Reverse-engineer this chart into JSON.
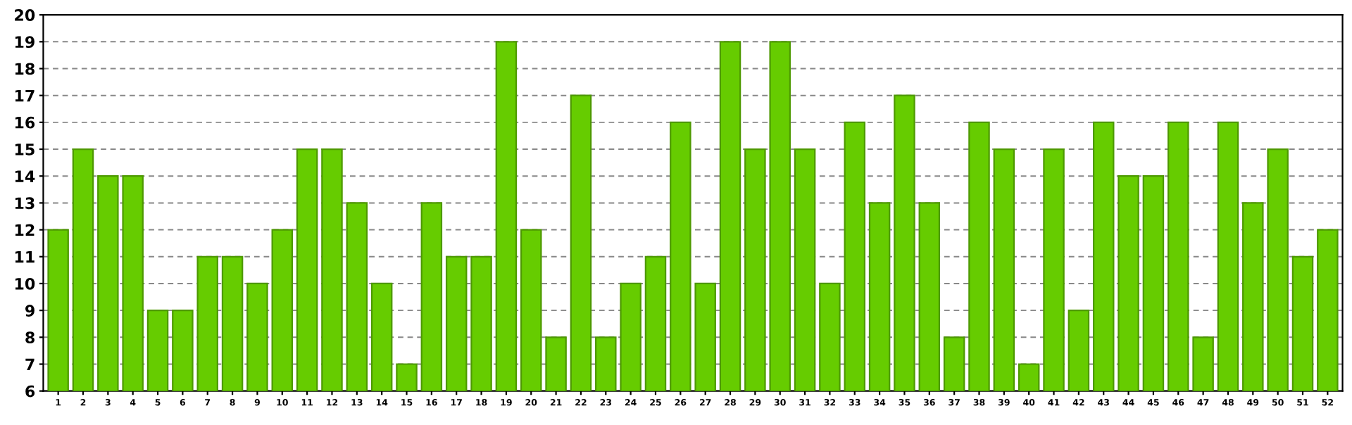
{
  "chart_data": {
    "type": "bar",
    "categories": [
      "1",
      "2",
      "3",
      "4",
      "5",
      "6",
      "7",
      "8",
      "9",
      "10",
      "11",
      "12",
      "13",
      "14",
      "15",
      "16",
      "17",
      "18",
      "19",
      "20",
      "21",
      "22",
      "23",
      "24",
      "25",
      "26",
      "27",
      "28",
      "29",
      "30",
      "31",
      "32",
      "33",
      "34",
      "35",
      "36",
      "37",
      "38",
      "39",
      "40",
      "41",
      "42",
      "43",
      "44",
      "45",
      "46",
      "47",
      "48",
      "49",
      "50",
      "51",
      "52"
    ],
    "values": [
      12,
      15,
      14,
      14,
      9,
      9,
      11,
      11,
      10,
      12,
      15,
      15,
      13,
      10,
      7,
      13,
      11,
      11,
      19,
      12,
      8,
      17,
      8,
      10,
      11,
      16,
      10,
      19,
      15,
      19,
      15,
      10,
      16,
      13,
      17,
      13,
      8,
      16,
      15,
      7,
      15,
      9,
      16,
      14,
      14,
      16,
      8,
      16,
      13,
      15,
      11,
      12
    ],
    "color": "#66cc00",
    "ylim": [
      6,
      20
    ],
    "yticks": [
      6,
      7,
      8,
      9,
      10,
      11,
      12,
      13,
      14,
      15,
      16,
      17,
      18,
      19,
      20
    ],
    "grid": "y"
  }
}
